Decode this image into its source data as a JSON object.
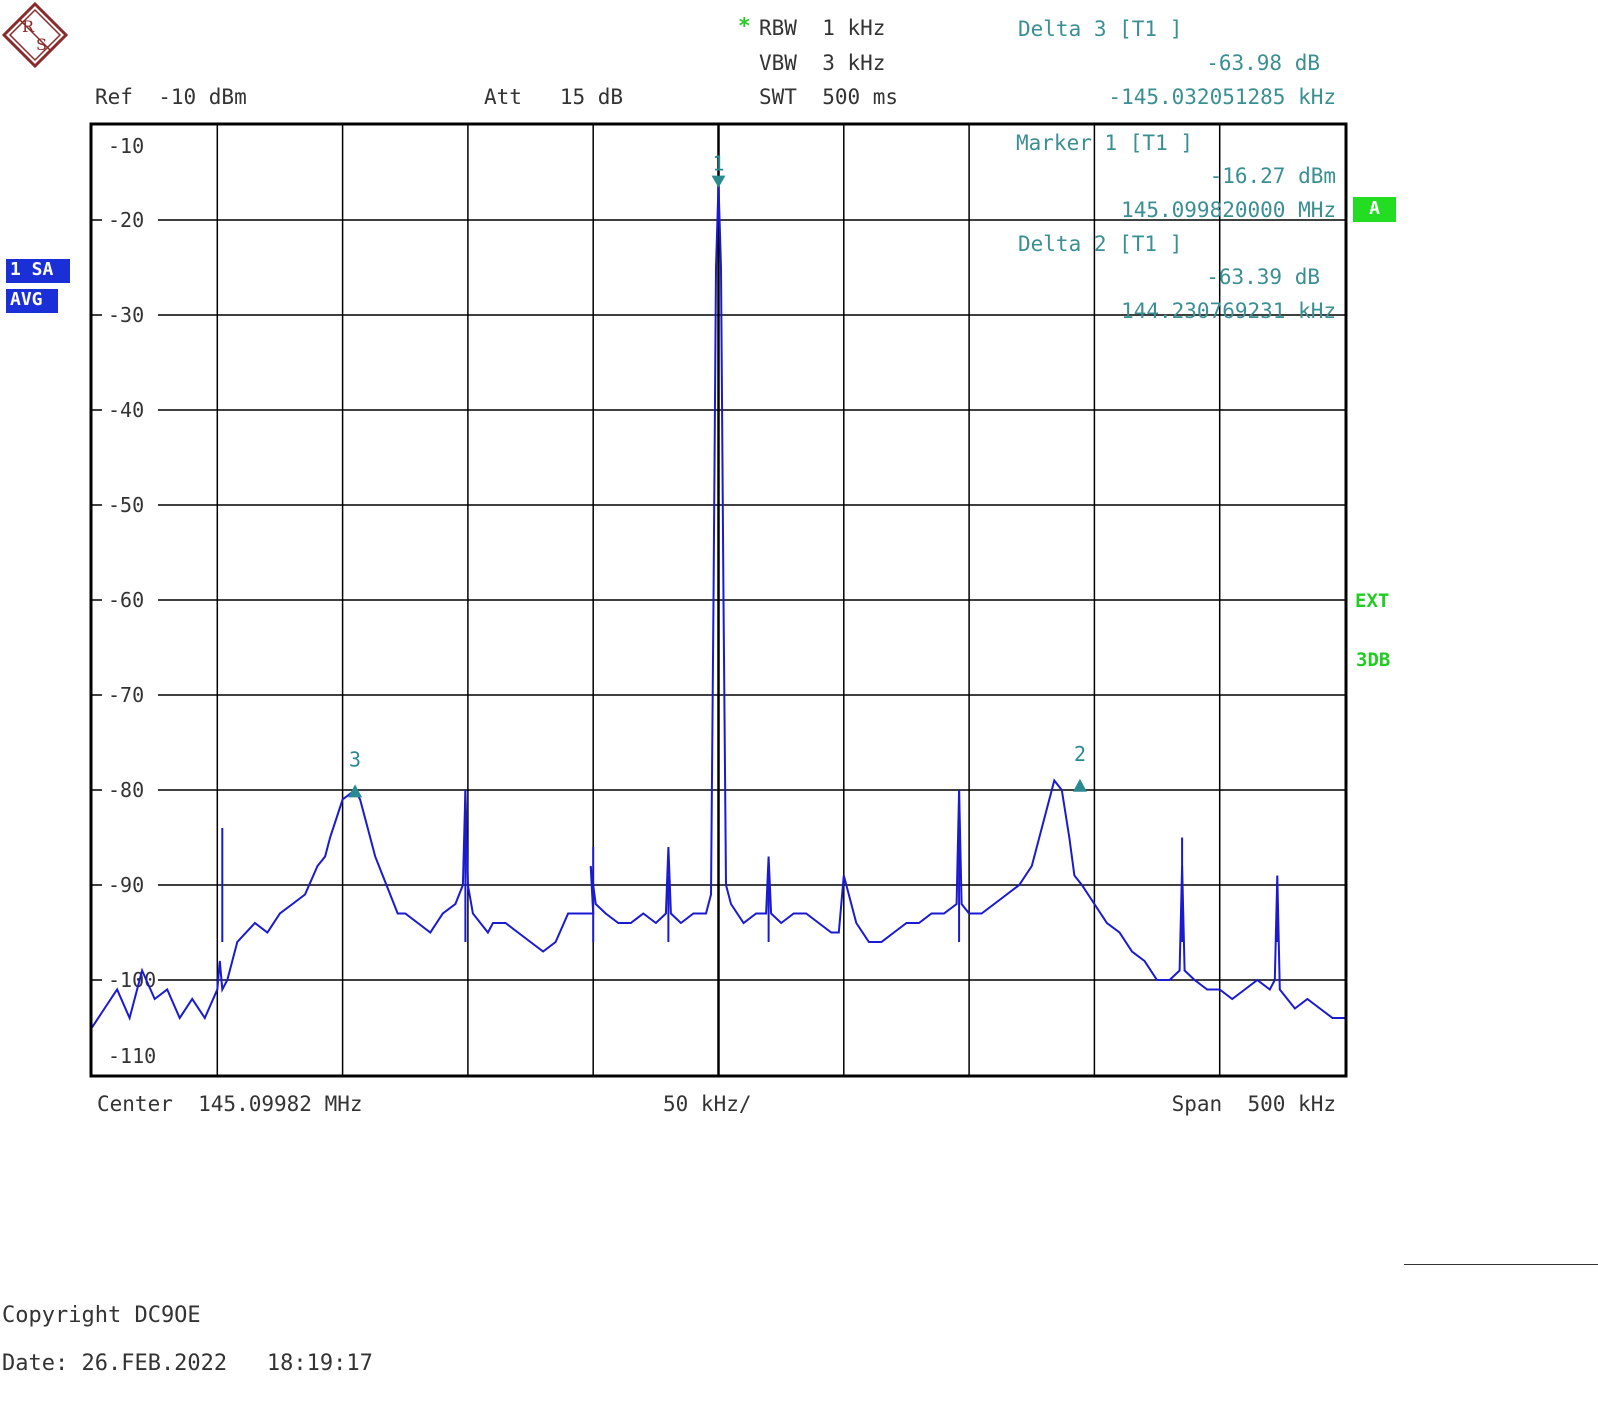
{
  "header": {
    "ref": "Ref  -10 dBm",
    "att": "Att   15 dB",
    "rbw_star": "*",
    "rbw": "RBW  1 kHz",
    "vbw": "VBW  3 kHz",
    "swt": "SWT  500 ms"
  },
  "markers_info": {
    "delta3_title": "Delta 3 [T1 ]",
    "delta3_value": "-63.98 dB",
    "delta3_freq": "-145.032051285 kHz",
    "marker1_title": "Marker 1 [T1 ]",
    "marker1_value": "-16.27 dBm",
    "marker1_freq": "145.099820000 MHz",
    "delta2_title": "Delta 2 [T1 ]",
    "delta2_value": "-63.39 dB",
    "delta2_freq": "144.230769231 kHz"
  },
  "badges": {
    "trace": "1 SA",
    "mode": "AVG",
    "a": "A",
    "ext": "EXT",
    "db3": "3DB"
  },
  "footer": {
    "center": "Center  145.09982 MHz",
    "div": "50 kHz/",
    "span": "Span  500 kHz",
    "copyright": "Copyright DC9OE",
    "date": "Date: 26.FEB.2022   18:19:17"
  },
  "colors": {
    "trace": "#1a1ad0",
    "marker": "#2a8a8f",
    "grid": "#000000"
  },
  "chart_data": {
    "type": "line",
    "title": "",
    "xlabel": "",
    "ylabel": "",
    "xlim": [
      -250,
      250
    ],
    "ylim": [
      -110,
      -10
    ],
    "x_unit": "kHz offset from 145.09982 MHz",
    "y_unit": "dBm",
    "ytick_labels": [
      "-10",
      "-20",
      "-30",
      "-40",
      "-50",
      "-60",
      "-70",
      "-80",
      "-90",
      "-100",
      "-110"
    ],
    "grid": true,
    "series": [
      {
        "name": "",
        "x": [
          -250,
          -245,
          -240,
          -235,
          -230,
          -225,
          -220,
          -215,
          -210,
          -205,
          -200,
          -199,
          -198,
          -196,
          -192,
          -185,
          -180,
          -175,
          -170,
          -165,
          -160,
          -157,
          -155,
          -150,
          -145,
          -143,
          -140,
          -137,
          -134,
          -131,
          -128,
          -125,
          -120,
          -115,
          -110,
          -105,
          -102,
          -101,
          -100,
          -98,
          -95,
          -92,
          -90,
          -85,
          -80,
          -75,
          -70,
          -65,
          -60,
          -55,
          -50,
          -51,
          -49,
          -45,
          -40,
          -35,
          -30,
          -25,
          -21,
          -20,
          -19,
          -15,
          -10,
          -5,
          -3,
          -2,
          -1,
          0,
          1,
          2,
          3,
          5,
          10,
          15,
          19,
          20,
          21,
          25,
          30,
          35,
          40,
          45,
          48,
          49,
          50,
          55,
          60,
          65,
          70,
          75,
          80,
          85,
          90,
          95,
          96,
          97,
          100,
          105,
          110,
          115,
          120,
          125,
          128,
          131,
          134,
          137,
          140,
          142,
          145,
          150,
          155,
          160,
          165,
          170,
          175,
          180,
          184,
          185,
          186,
          190,
          195,
          200,
          205,
          210,
          215,
          220,
          222,
          223,
          224,
          230,
          235,
          240,
          245,
          250
        ],
        "values": [
          -105,
          -103,
          -101,
          -104,
          -99,
          -102,
          -101,
          -104,
          -102,
          -104,
          -101,
          -98,
          -101,
          -100,
          -96,
          -94,
          -95,
          -93,
          -92,
          -91,
          -88,
          -87,
          -85,
          -81,
          -80,
          -81,
          -84,
          -87,
          -89,
          -91,
          -93,
          -93,
          -94,
          -95,
          -93,
          -92,
          -90,
          -80,
          -90,
          -93,
          -94,
          -95,
          -94,
          -94,
          -95,
          -96,
          -97,
          -96,
          -93,
          -93,
          -93,
          -88,
          -92,
          -93,
          -94,
          -94,
          -93,
          -94,
          -93,
          -86,
          -93,
          -94,
          -93,
          -93,
          -91,
          -60,
          -25,
          -16.27,
          -25,
          -60,
          -90,
          -92,
          -94,
          -93,
          -93,
          -87,
          -93,
          -94,
          -93,
          -93,
          -94,
          -95,
          -95,
          -92,
          -89,
          -94,
          -96,
          -96,
          -95,
          -94,
          -94,
          -93,
          -93,
          -92,
          -80,
          -92,
          -93,
          -93,
          -92,
          -91,
          -90,
          -88,
          -85,
          -82,
          -79,
          -80,
          -85,
          -89,
          -90,
          -92,
          -94,
          -95,
          -97,
          -98,
          -100,
          -100,
          -99,
          -88,
          -99,
          -100,
          -101,
          -101,
          -102,
          -101,
          -100,
          -101,
          -100,
          -89,
          -101,
          -103,
          -102,
          -103,
          -104,
          -104
        ]
      }
    ],
    "spurs": [
      {
        "x": -198,
        "y": -84
      },
      {
        "x": -101,
        "y": -80
      },
      {
        "x": -50,
        "y": -86
      },
      {
        "x": -20,
        "y": -89
      },
      {
        "x": 20,
        "y": -88
      },
      {
        "x": 96,
        "y": -80
      },
      {
        "x": 185,
        "y": -85
      },
      {
        "x": 223,
        "y": -91
      }
    ],
    "markers": [
      {
        "label": "1",
        "x": 0,
        "y": -16.27,
        "shape": "down"
      },
      {
        "label": "2",
        "x": 144.23,
        "y": -79.66,
        "shape": "up"
      },
      {
        "label": "3",
        "x": -145.03,
        "y": -80.25,
        "shape": "up"
      }
    ]
  }
}
